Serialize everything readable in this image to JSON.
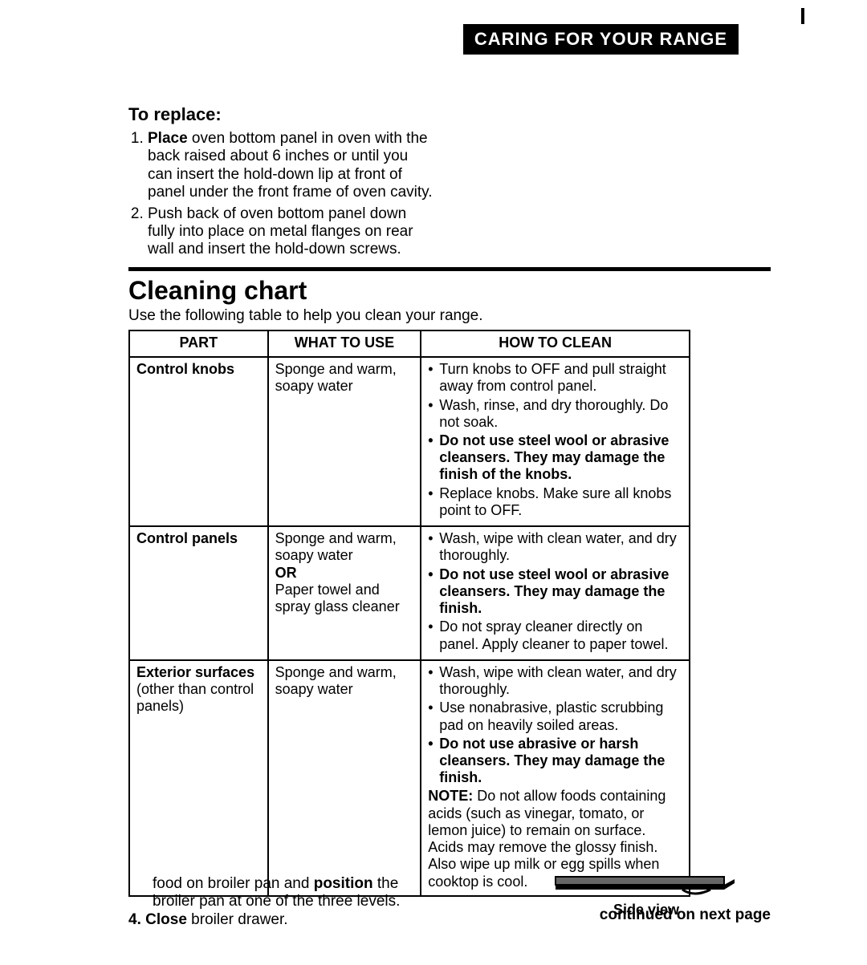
{
  "header": "CARING FOR YOUR RANGE",
  "replace": {
    "heading": "To replace:",
    "items": [
      {
        "lead": "Place",
        "rest": " oven bottom panel in oven with the back raised about 6 inches or until you can insert the hold-down lip at front of panel under the front frame of oven cavity."
      },
      {
        "lead": "",
        "rest": "Push back of oven bottom panel down fully into place on metal flanges on rear wall and insert the hold-down screws."
      }
    ]
  },
  "chart": {
    "heading": "Cleaning chart",
    "sub": "Use the following table to help you clean your range.",
    "columns": [
      "PART",
      "WHAT TO USE",
      "HOW TO CLEAN"
    ],
    "rows": [
      {
        "part": "Control knobs",
        "part_paren": "",
        "use_lines": [
          "Sponge and warm, soapy water"
        ],
        "how": [
          {
            "text": "Turn knobs to OFF and pull straight away from control panel.",
            "bold": false
          },
          {
            "text": "Wash, rinse, and dry thoroughly. Do not soak.",
            "bold": false
          },
          {
            "text": "Do not use steel wool or abrasive cleansers. They may damage the finish of the knobs.",
            "bold": true
          },
          {
            "text": "Replace knobs. Make sure all knobs point to OFF.",
            "bold": false
          }
        ]
      },
      {
        "part": "Control panels",
        "part_paren": "",
        "use_lines": [
          "Sponge and warm, soapy water",
          "OR",
          "Paper towel and spray glass cleaner"
        ],
        "how": [
          {
            "text": "Wash, wipe with clean water, and dry thoroughly.",
            "bold": false
          },
          {
            "text": "Do not use steel wool or abrasive cleansers. They may damage the finish.",
            "bold": true
          },
          {
            "text": "Do not spray cleaner directly on panel. Apply cleaner to paper towel.",
            "bold": false
          }
        ]
      },
      {
        "part": "Exterior surfaces",
        "part_paren": "(other than control panels)",
        "use_lines": [
          "Sponge and warm, soapy water"
        ],
        "how": [
          {
            "text": "Wash, wipe with clean water, and dry thoroughly.",
            "bold": false
          },
          {
            "text": "Use nonabrasive, plastic scrubbing pad on heavily soiled areas.",
            "bold": false
          },
          {
            "text": "Do not use abrasive or harsh cleansers. They may damage the finish.",
            "bold": true
          }
        ],
        "note_lead": "NOTE:",
        "note": " Do not allow foods containing acids (such as vinegar, tomato, or lemon juice) to remain on surface. Acids may remove the glossy finish. Also wipe up milk or egg spills when cooktop is cool."
      }
    ],
    "continued": "continued on next page"
  },
  "footer": {
    "line1_pre": "food on broiler pan and ",
    "line1_bold": "position",
    "line1_post": " the broiler pan at one of the three levels.",
    "line2_num": "4.",
    "line2_bold": "Close",
    "line2_rest": " broiler drawer.",
    "sideview": "Side view"
  }
}
